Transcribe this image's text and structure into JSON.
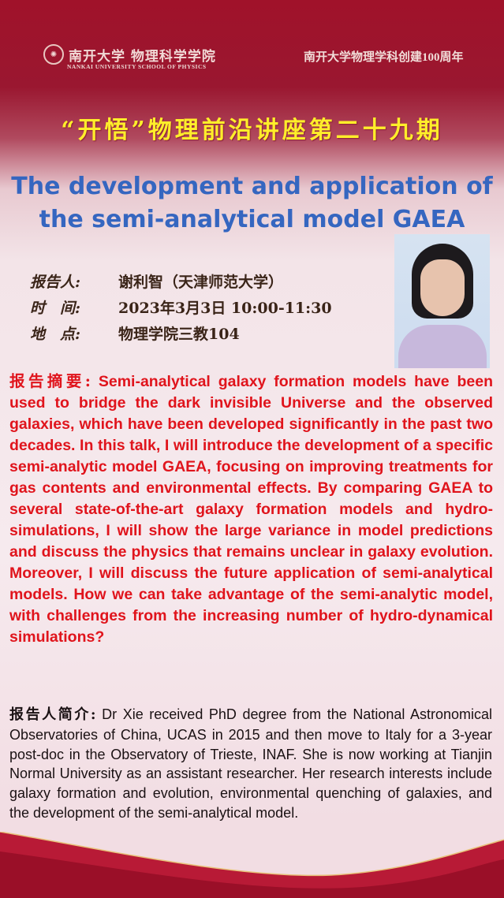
{
  "header": {
    "logo_cn": "南开大学 物理科学学院",
    "logo_en": "NANKAI UNIVERSITY SCHOOL OF PHYSICS",
    "anniversary": "南开大学物理学科创建100周年"
  },
  "series": "“开悟”物理前沿讲座第二十九期",
  "title": {
    "line1": "The development and application of",
    "line2": "the semi-analytical model GAEA"
  },
  "info": {
    "speaker_label": "报告人:",
    "speaker": "谢利智（天津师范大学）",
    "time_label": "时　间:",
    "time": "2023年3月3日 10:00-11:30",
    "place_label": "地　点:",
    "place": "物理学院三教104"
  },
  "abstract": {
    "label": "报告摘要:",
    "text": " Semi-analytical galaxy formation models have been used to bridge the dark invisible Universe and the observed galaxies, which have been developed significantly in the past two decades. In this talk, I will introduce the development of a specific semi-analytic model GAEA, focusing on improving treatments for gas contents and environmental effects. By comparing GAEA to several state-of-the-art galaxy formation models and hydro-simulations, I will show the large variance in model predictions and discuss the physics that remains unclear in galaxy evolution. Moreover, I will discuss the future application of semi-analytical models. How we can take advantage of the semi-analytic model, with challenges from the increasing number of hydro-dynamical simulations?"
  },
  "bio": {
    "label": "报告人简介:",
    "text": " Dr Xie received PhD degree from the National Astronomical Observatories of China, UCAS in 2015 and then move to Italy for a 3-year post-doc in the Observatory of Trieste, INAF. She is now working at Tianjin Normal University as an assistant researcher. Her research interests include galaxy formation and evolution, environmental quenching of galaxies, and the development of the semi-analytical model."
  },
  "colors": {
    "header_red": "#a0122a",
    "series_yellow": "#ffee2a",
    "title_blue": "#3566c0",
    "abstract_red": "#e0141c"
  }
}
